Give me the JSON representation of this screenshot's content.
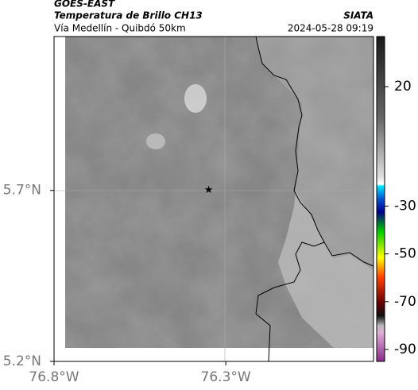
{
  "header": {
    "satellite": "GOES-EAST",
    "product": "Temperatura de Brillo CH13",
    "location": "Vía Medellín - Quibdó 50km",
    "source": "SIATA",
    "datetime": "2024-05-28 09:19"
  },
  "map": {
    "xlim": [
      -76.8,
      -75.87
    ],
    "ylim": [
      5.2,
      6.15
    ],
    "xticks": [
      {
        "value": -76.8,
        "label": "76.8°W"
      },
      {
        "value": -76.3,
        "label": "76.3°W"
      }
    ],
    "yticks": [
      {
        "value": 5.7,
        "label": "5.7°N"
      },
      {
        "value": 5.2,
        "label": "5.2°N"
      }
    ],
    "marker": {
      "lon": -76.35,
      "lat": 5.7
    }
  },
  "colorbar": {
    "lim": [
      -95,
      41
    ],
    "ticks": [
      20,
      -30,
      -50,
      -70,
      -90
    ]
  }
}
